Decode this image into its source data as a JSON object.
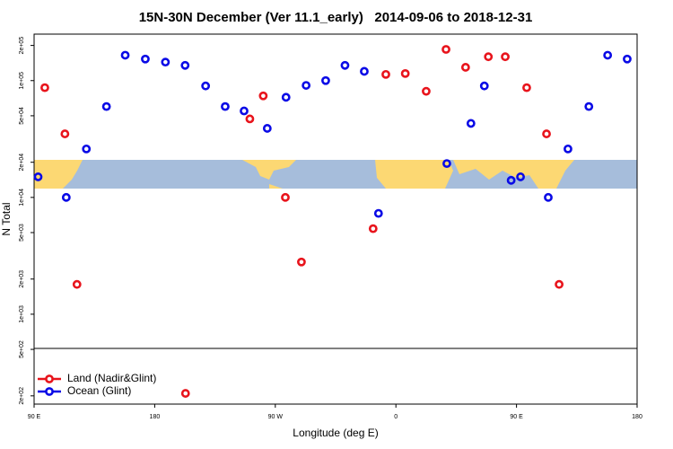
{
  "chart_data": {
    "type": "scatter",
    "title": "15N-30N December (Ver 11.1_early)   2014-09-06 to 2018-12-31",
    "x_label": "Longitude (deg E)",
    "y_label": "N Total",
    "xlim": [
      90,
      540
    ],
    "xticks": [
      {
        "value": 90,
        "label": "90 E"
      },
      180,
      {
        "value": 270,
        "label": "90 W"
      },
      {
        "value": 360,
        "label": "0"
      },
      {
        "value": 450,
        "label": "90 E"
      },
      {
        "value": 540,
        "label": "180"
      }
    ],
    "ylim": [
      170,
      250000
    ],
    "y_log": true,
    "yticks": [
      {
        "value": 200,
        "label": "2e+02"
      },
      {
        "value": 500,
        "label": "5e+02"
      },
      {
        "value": 1000,
        "label": "1e+03"
      },
      {
        "value": 2000,
        "label": "2e+03"
      },
      {
        "value": 5000,
        "label": "5e+03"
      },
      {
        "value": 10000,
        "label": "1e+04"
      },
      {
        "value": 20000,
        "label": "2e+04"
      },
      {
        "value": 50000,
        "label": "5e+04"
      },
      {
        "value": 100000,
        "label": "1e+05"
      },
      {
        "value": 200000,
        "label": "2e+05"
      }
    ],
    "legend": "bottom-left",
    "series": [
      {
        "name": "Land (Nadir&Glint)",
        "color": "#e8141c",
        "x": [
          98,
          113,
          122,
          203,
          251,
          261,
          277.5,
          289.5,
          343,
          352.5,
          367,
          382.6,
          397.4,
          412,
          429,
          441.6,
          457.6,
          472.4,
          481.8
        ],
        "values": [
          87000,
          35000,
          1800,
          210,
          47000,
          74000,
          10000,
          2800,
          5400,
          113000,
          115000,
          81000,
          185000,
          130000,
          160000,
          160000,
          87000,
          35000,
          1800
        ]
      },
      {
        "name": "Ocean (Glint)",
        "color": "#0a0ae6",
        "x": [
          93,
          114,
          129,
          144,
          158,
          173,
          188,
          202.7,
          218,
          232.6,
          246.7,
          264,
          278,
          293,
          307.6,
          322,
          336.4,
          347,
          398,
          416,
          426,
          446,
          453,
          473.7,
          488.4,
          504,
          518,
          532.6
        ],
        "values": [
          15000,
          10000,
          26000,
          60000,
          165000,
          153000,
          144000,
          135000,
          90000,
          60000,
          55000,
          39000,
          72000,
          91000,
          100000,
          135000,
          120000,
          7300,
          19500,
          43000,
          90000,
          14000,
          15000,
          10000,
          26000,
          60000,
          165000,
          153000
        ]
      }
    ]
  }
}
